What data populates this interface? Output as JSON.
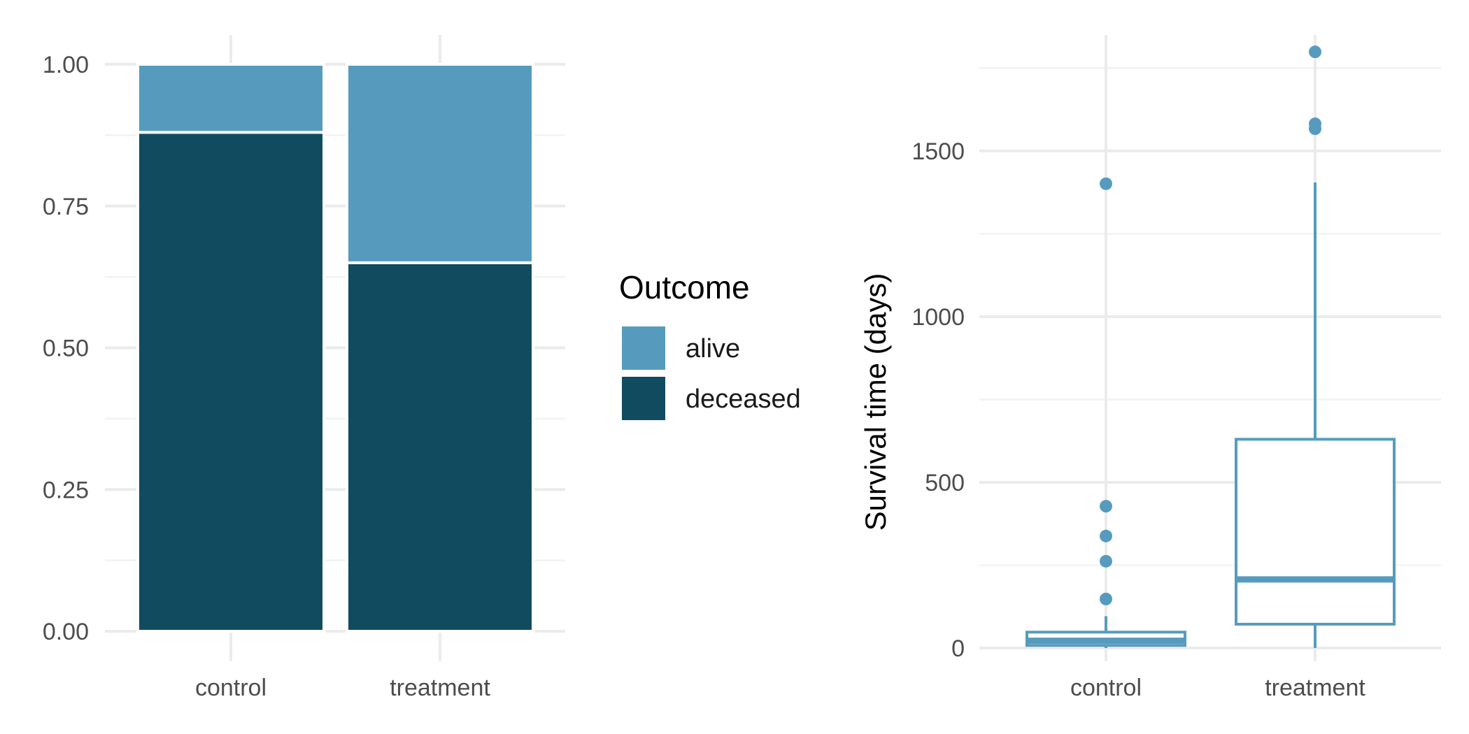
{
  "chart_data": [
    {
      "type": "bar",
      "stacked": true,
      "normalized": true,
      "categories": [
        "control",
        "treatment"
      ],
      "series": [
        {
          "name": "alive",
          "values": [
            0.12,
            0.35
          ],
          "color": "#569bbd"
        },
        {
          "name": "deceased",
          "values": [
            0.88,
            0.65
          ],
          "color": "#114b5f"
        }
      ],
      "xlabel": "",
      "ylabel": "",
      "ylim": [
        0,
        1
      ],
      "yticks": [
        0,
        0.25,
        0.5,
        0.75,
        1
      ],
      "ytick_labels": [
        "0.00",
        "0.25",
        "0.50",
        "0.75",
        "1.00"
      ],
      "legend": {
        "title": "Outcome",
        "placement": "right",
        "entries": [
          "alive",
          "deceased"
        ]
      },
      "grid": true
    },
    {
      "type": "box",
      "categories": [
        "control",
        "treatment"
      ],
      "boxes": [
        {
          "category": "control",
          "whisker_low": 0,
          "q1": 8,
          "median": 22,
          "q3": 48,
          "whisker_high": 96,
          "outliers": [
            148,
            262,
            338,
            428,
            1401
          ]
        },
        {
          "category": "treatment",
          "whisker_low": 0,
          "q1": 72,
          "median": 207,
          "q3": 630,
          "whisker_high": 1405,
          "outliers": [
            1567,
            1582,
            1799
          ]
        }
      ],
      "color": "#569bbd",
      "xlabel": "",
      "ylabel": "Survival time (days)",
      "ylim": [
        -40,
        1850
      ],
      "yticks": [
        0,
        500,
        1000,
        1500
      ],
      "ytick_labels": [
        "0",
        "500",
        "1000",
        "1500"
      ],
      "grid": true
    }
  ]
}
